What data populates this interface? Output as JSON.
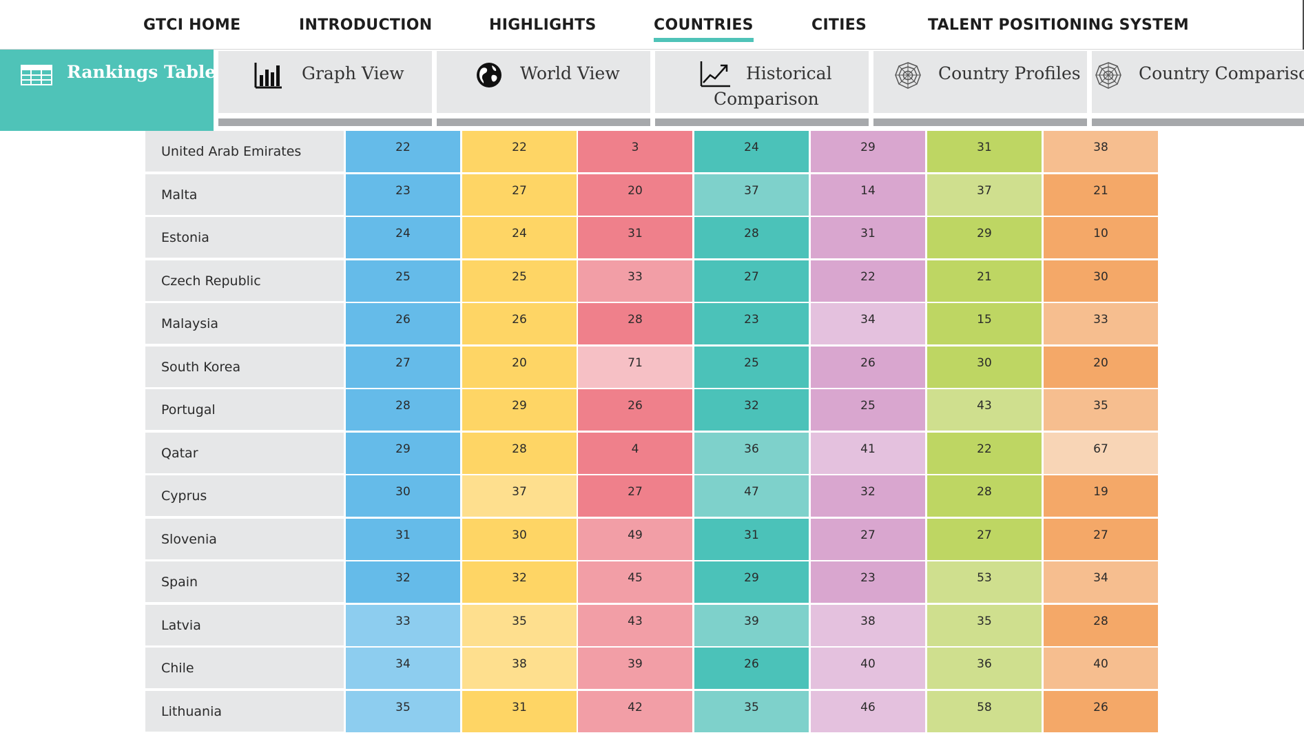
{
  "nav": {
    "items": [
      "GTCI HOME",
      "INTRODUCTION",
      "HIGHLIGHTS",
      "COUNTRIES",
      "CITIES",
      "TALENT POSITIONING SYSTEM"
    ],
    "active": "COUNTRIES",
    "accent": "#4fc3b8"
  },
  "tabs": {
    "active_label": "Rankings Table",
    "items": [
      {
        "label": "Graph View",
        "icon": "bar-chart-icon"
      },
      {
        "label": "World View",
        "icon": "globe-icon"
      },
      {
        "label": "Historical",
        "label2": "Comparison",
        "icon": "line-chart-icon"
      },
      {
        "label": "Country Profiles",
        "icon": "radar-icon"
      },
      {
        "label": "Country Comparison",
        "icon": "radar-icon"
      }
    ]
  },
  "table": {
    "column_colors": [
      [
        "#65bbe9",
        "#8dcdef"
      ],
      [
        "#fed565",
        "#fedf8e"
      ],
      [
        "#ef808b",
        "#f29ea6",
        "#f6c0c5"
      ],
      [
        "#4bc2b9",
        "#7ed1cb"
      ],
      [
        "#d9a6cf",
        "#e4c1de"
      ],
      [
        "#bed663",
        "#cfdf8e"
      ],
      [
        "#f4a868",
        "#f6be8f",
        "#f8d5b6"
      ]
    ],
    "rows": [
      {
        "country": "United Arab Emirates",
        "values": [
          "22",
          "22",
          "3",
          "24",
          "29",
          "31",
          "38"
        ],
        "shades": [
          0,
          0,
          0,
          0,
          0,
          0,
          1
        ]
      },
      {
        "country": "Malta",
        "values": [
          "23",
          "27",
          "20",
          "37",
          "14",
          "37",
          "21"
        ],
        "shades": [
          0,
          0,
          0,
          1,
          0,
          1,
          0
        ]
      },
      {
        "country": "Estonia",
        "values": [
          "24",
          "24",
          "31",
          "28",
          "31",
          "29",
          "10"
        ],
        "shades": [
          0,
          0,
          0,
          0,
          0,
          0,
          0
        ]
      },
      {
        "country": "Czech Republic",
        "values": [
          "25",
          "25",
          "33",
          "27",
          "22",
          "21",
          "30"
        ],
        "shades": [
          0,
          0,
          1,
          0,
          0,
          0,
          0
        ]
      },
      {
        "country": "Malaysia",
        "values": [
          "26",
          "26",
          "28",
          "23",
          "34",
          "15",
          "33"
        ],
        "shades": [
          0,
          0,
          0,
          0,
          1,
          0,
          1
        ]
      },
      {
        "country": "South Korea",
        "values": [
          "27",
          "20",
          "71",
          "25",
          "26",
          "30",
          "20"
        ],
        "shades": [
          0,
          0,
          2,
          0,
          0,
          0,
          0
        ]
      },
      {
        "country": "Portugal",
        "values": [
          "28",
          "29",
          "26",
          "32",
          "25",
          "43",
          "35"
        ],
        "shades": [
          0,
          0,
          0,
          0,
          0,
          1,
          1
        ]
      },
      {
        "country": "Qatar",
        "values": [
          "29",
          "28",
          "4",
          "36",
          "41",
          "22",
          "67"
        ],
        "shades": [
          0,
          0,
          0,
          1,
          1,
          0,
          2
        ]
      },
      {
        "country": "Cyprus",
        "values": [
          "30",
          "37",
          "27",
          "47",
          "32",
          "28",
          "19"
        ],
        "shades": [
          0,
          1,
          0,
          1,
          0,
          0,
          0
        ]
      },
      {
        "country": "Slovenia",
        "values": [
          "31",
          "30",
          "49",
          "31",
          "27",
          "27",
          "27"
        ],
        "shades": [
          0,
          0,
          1,
          0,
          0,
          0,
          0
        ]
      },
      {
        "country": "Spain",
        "values": [
          "32",
          "32",
          "45",
          "29",
          "23",
          "53",
          "34"
        ],
        "shades": [
          0,
          0,
          1,
          0,
          0,
          1,
          1
        ]
      },
      {
        "country": "Latvia",
        "values": [
          "33",
          "35",
          "43",
          "39",
          "38",
          "35",
          "28"
        ],
        "shades": [
          1,
          1,
          1,
          1,
          1,
          1,
          0
        ]
      },
      {
        "country": "Chile",
        "values": [
          "34",
          "38",
          "39",
          "26",
          "40",
          "36",
          "40"
        ],
        "shades": [
          1,
          1,
          1,
          0,
          1,
          1,
          1
        ]
      },
      {
        "country": "Lithuania",
        "values": [
          "35",
          "31",
          "42",
          "35",
          "46",
          "58",
          "26"
        ],
        "shades": [
          1,
          0,
          1,
          1,
          1,
          1,
          0
        ]
      }
    ]
  }
}
